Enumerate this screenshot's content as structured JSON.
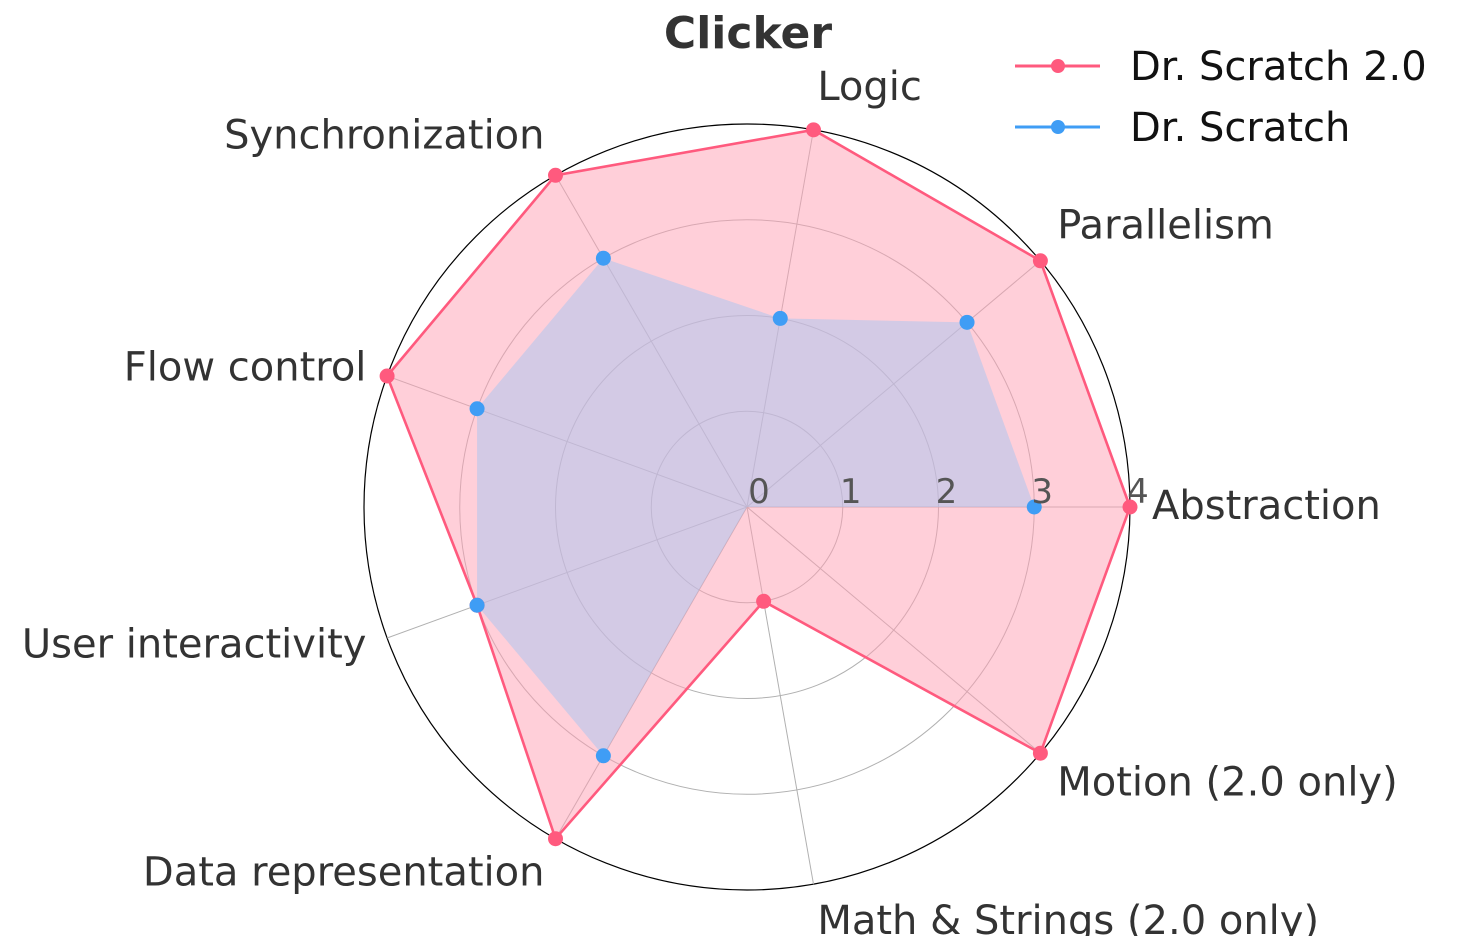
{
  "chart_data": {
    "type": "radar",
    "title": "Clicker",
    "categories": [
      "Abstraction",
      "Parallelism",
      "Logic",
      "Synchronization",
      "Flow control",
      "User interactivity",
      "Data representation",
      "Math & Strings (2.0 only)",
      "Motion (2.0 only)"
    ],
    "rlim": [
      0,
      4
    ],
    "rticks": [
      0,
      1,
      2,
      3,
      4
    ],
    "rtick_labels": [
      "0",
      "1",
      "2",
      "3",
      "4"
    ],
    "grid": true,
    "legend_position": "top-right",
    "series": [
      {
        "name": "Dr. Scratch 2.0",
        "color": "#ff5a7e",
        "fill_color": "#ff9fb4",
        "values": [
          4,
          4,
          4,
          4,
          4,
          3,
          4,
          1,
          4
        ]
      },
      {
        "name": "Dr. Scratch",
        "color": "#3f9df5",
        "fill_color": "#a8c6f2",
        "values": [
          3,
          3,
          2,
          3,
          3,
          3,
          3,
          0,
          0
        ]
      }
    ]
  }
}
